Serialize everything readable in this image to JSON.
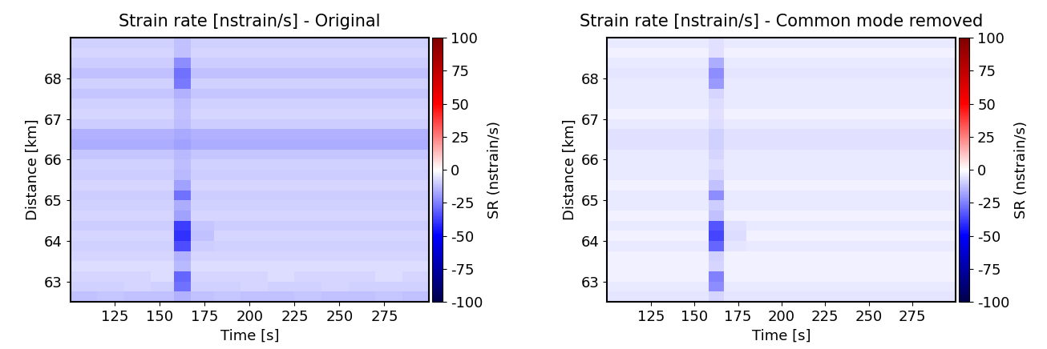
{
  "chart_data": [
    {
      "type": "heatmap",
      "title": "Strain rate [nstrain/s] - Original",
      "xlabel": "Time [s]",
      "ylabel": "Distance [km]",
      "color": "seismic",
      "x_edges": [
        100,
        115,
        130,
        145,
        158,
        167,
        180,
        195,
        210,
        225,
        240,
        255,
        270,
        285,
        300
      ],
      "y_edges": [
        62.5,
        62.75,
        63.0,
        63.25,
        63.5,
        63.75,
        64.0,
        64.25,
        64.5,
        64.75,
        65.0,
        65.25,
        65.5,
        65.75,
        66.0,
        66.25,
        66.5,
        66.75,
        67.0,
        67.25,
        67.5,
        67.75,
        68.0,
        68.25,
        68.5,
        68.75,
        69.0
      ],
      "cells": [
        [
          -12,
          -11,
          -12,
          -12,
          -15,
          -12,
          -11,
          -12,
          -12,
          -11,
          -12,
          -12,
          -11,
          -12
        ],
        [
          -9,
          -9,
          -8,
          -9,
          -28,
          -9,
          -9,
          -8,
          -9,
          -9,
          -8,
          -9,
          -9,
          -9
        ],
        [
          -8,
          -8,
          -8,
          -7,
          -30,
          -8,
          -8,
          -8,
          -7,
          -8,
          -8,
          -8,
          -7,
          -8
        ],
        [
          -7,
          -7,
          -7,
          -7,
          -14,
          -7,
          -7,
          -7,
          -7,
          -7,
          -7,
          -7,
          -7,
          -7
        ],
        [
          -8,
          -8,
          -8,
          -8,
          -15,
          -8,
          -8,
          -8,
          -8,
          -8,
          -8,
          -8,
          -8,
          -8
        ],
        [
          -9,
          -9,
          -9,
          -9,
          -35,
          -10,
          -9,
          -9,
          -9,
          -9,
          -9,
          -9,
          -9,
          -9
        ],
        [
          -8,
          -8,
          -8,
          -8,
          -40,
          -12,
          -8,
          -8,
          -8,
          -8,
          -8,
          -8,
          -8,
          -8
        ],
        [
          -10,
          -10,
          -10,
          -10,
          -38,
          -11,
          -10,
          -10,
          -10,
          -10,
          -10,
          -10,
          -10,
          -10
        ],
        [
          -8,
          -8,
          -8,
          -8,
          -18,
          -8,
          -8,
          -8,
          -8,
          -8,
          -8,
          -8,
          -8,
          -8
        ],
        [
          -9,
          -9,
          -9,
          -9,
          -16,
          -9,
          -9,
          -9,
          -9,
          -9,
          -9,
          -9,
          -9,
          -9
        ],
        [
          -10,
          -10,
          -10,
          -10,
          -28,
          -10,
          -10,
          -10,
          -10,
          -10,
          -10,
          -10,
          -10,
          -10
        ],
        [
          -8,
          -8,
          -8,
          -8,
          -18,
          -8,
          -8,
          -8,
          -8,
          -8,
          -8,
          -8,
          -8,
          -8
        ],
        [
          -10,
          -10,
          -10,
          -10,
          -14,
          -10,
          -10,
          -10,
          -10,
          -10,
          -10,
          -10,
          -10,
          -10
        ],
        [
          -9,
          -9,
          -9,
          -9,
          -13,
          -9,
          -9,
          -9,
          -9,
          -9,
          -9,
          -9,
          -9,
          -9
        ],
        [
          -11,
          -11,
          -11,
          -11,
          -14,
          -11,
          -11,
          -11,
          -11,
          -11,
          -11,
          -11,
          -11,
          -11
        ],
        [
          -16,
          -16,
          -16,
          -16,
          -18,
          -16,
          -16,
          -16,
          -16,
          -16,
          -16,
          -16,
          -16,
          -16
        ],
        [
          -15,
          -15,
          -15,
          -15,
          -17,
          -15,
          -15,
          -15,
          -15,
          -15,
          -15,
          -15,
          -15,
          -15
        ],
        [
          -10,
          -10,
          -10,
          -10,
          -13,
          -10,
          -10,
          -10,
          -10,
          -10,
          -10,
          -10,
          -10,
          -10
        ],
        [
          -8,
          -8,
          -8,
          -8,
          -12,
          -8,
          -8,
          -8,
          -8,
          -8,
          -8,
          -8,
          -8,
          -8
        ],
        [
          -9,
          -9,
          -9,
          -9,
          -13,
          -9,
          -9,
          -9,
          -9,
          -9,
          -9,
          -9,
          -9,
          -9
        ],
        [
          -11,
          -11,
          -11,
          -11,
          -15,
          -11,
          -11,
          -11,
          -11,
          -11,
          -11,
          -11,
          -11,
          -11
        ],
        [
          -9,
          -9,
          -9,
          -9,
          -26,
          -9,
          -9,
          -9,
          -9,
          -9,
          -9,
          -9,
          -9,
          -9
        ],
        [
          -12,
          -12,
          -12,
          -12,
          -28,
          -12,
          -12,
          -12,
          -12,
          -12,
          -12,
          -12,
          -12,
          -12
        ],
        [
          -10,
          -10,
          -10,
          -10,
          -22,
          -10,
          -10,
          -10,
          -10,
          -10,
          -10,
          -10,
          -10,
          -10
        ],
        [
          -8,
          -8,
          -8,
          -8,
          -12,
          -8,
          -8,
          -8,
          -8,
          -8,
          -8,
          -8,
          -8,
          -8
        ],
        [
          -9,
          -9,
          -9,
          -9,
          -12,
          -9,
          -9,
          -9,
          -9,
          -9,
          -9,
          -9,
          -9,
          -9
        ]
      ],
      "xlim": [
        100,
        300
      ],
      "ylim": [
        62.5,
        69.0
      ],
      "xticks": [
        125,
        150,
        175,
        200,
        225,
        250,
        275
      ],
      "yticks": [
        63,
        64,
        65,
        66,
        67,
        68
      ],
      "colorbar": {
        "label": "SR (nstrain/s)",
        "range": [
          -100,
          100
        ],
        "ticks": [
          -100,
          -75,
          -50,
          -25,
          0,
          25,
          50,
          75,
          100
        ]
      }
    },
    {
      "type": "heatmap",
      "title": "Strain rate [nstrain/s] - Common mode removed",
      "xlabel": "Time [s]",
      "ylabel": "Distance [km]",
      "color": "seismic",
      "x_edges": [
        100,
        115,
        130,
        145,
        158,
        167,
        180,
        195,
        210,
        225,
        240,
        255,
        270,
        285,
        300
      ],
      "y_edges": [
        62.5,
        62.75,
        63.0,
        63.25,
        63.5,
        63.75,
        64.0,
        64.25,
        64.5,
        64.75,
        65.0,
        65.25,
        65.5,
        65.75,
        66.0,
        66.25,
        66.5,
        66.75,
        67.0,
        67.25,
        67.5,
        67.75,
        68.0,
        68.25,
        68.5,
        68.75,
        69.0
      ],
      "cells": [
        [
          -5,
          -5,
          -5,
          -5,
          -8,
          -5,
          -5,
          -5,
          -5,
          -5,
          -5,
          -5,
          -5,
          -5
        ],
        [
          -4,
          -4,
          -4,
          -4,
          -22,
          -4,
          -4,
          -4,
          -4,
          -4,
          -4,
          -4,
          -4,
          -4
        ],
        [
          -3,
          -3,
          -3,
          -3,
          -25,
          -3,
          -3,
          -3,
          -3,
          -3,
          -3,
          -3,
          -3,
          -3
        ],
        [
          -3,
          -3,
          -3,
          -3,
          -8,
          -3,
          -3,
          -3,
          -3,
          -3,
          -3,
          -3,
          -3,
          -3
        ],
        [
          -3,
          -3,
          -3,
          -3,
          -9,
          -3,
          -3,
          -3,
          -3,
          -3,
          -3,
          -3,
          -3,
          -3
        ],
        [
          -4,
          -4,
          -4,
          -4,
          -30,
          -5,
          -4,
          -4,
          -4,
          -4,
          -4,
          -4,
          -4,
          -4
        ],
        [
          -3,
          -3,
          -3,
          -3,
          -36,
          -7,
          -3,
          -3,
          -3,
          -3,
          -3,
          -3,
          -3,
          -3
        ],
        [
          -4,
          -4,
          -4,
          -4,
          -33,
          -6,
          -4,
          -4,
          -4,
          -4,
          -4,
          -4,
          -4,
          -4
        ],
        [
          -3,
          -3,
          -3,
          -3,
          -12,
          -3,
          -3,
          -3,
          -3,
          -3,
          -3,
          -3,
          -3,
          -3
        ],
        [
          -4,
          -4,
          -4,
          -4,
          -10,
          -4,
          -4,
          -4,
          -4,
          -4,
          -4,
          -4,
          -4,
          -4
        ],
        [
          -4,
          -4,
          -4,
          -4,
          -22,
          -4,
          -4,
          -4,
          -4,
          -4,
          -4,
          -4,
          -4,
          -4
        ],
        [
          -3,
          -3,
          -3,
          -3,
          -12,
          -3,
          -3,
          -3,
          -3,
          -3,
          -3,
          -3,
          -3,
          -3
        ],
        [
          -4,
          -4,
          -4,
          -4,
          -8,
          -4,
          -4,
          -4,
          -4,
          -4,
          -4,
          -4,
          -4,
          -4
        ],
        [
          -4,
          -4,
          -4,
          -4,
          -7,
          -4,
          -4,
          -4,
          -4,
          -4,
          -4,
          -4,
          -4,
          -4
        ],
        [
          -4,
          -4,
          -4,
          -4,
          -8,
          -4,
          -4,
          -4,
          -4,
          -4,
          -4,
          -4,
          -4,
          -4
        ],
        [
          -6,
          -6,
          -6,
          -6,
          -9,
          -6,
          -6,
          -6,
          -6,
          -6,
          -6,
          -6,
          -6,
          -6
        ],
        [
          -6,
          -6,
          -6,
          -6,
          -9,
          -6,
          -6,
          -6,
          -6,
          -6,
          -6,
          -6,
          -6,
          -6
        ],
        [
          -4,
          -4,
          -4,
          -4,
          -7,
          -4,
          -4,
          -4,
          -4,
          -4,
          -4,
          -4,
          -4,
          -4
        ],
        [
          -3,
          -3,
          -3,
          -3,
          -6,
          -3,
          -3,
          -3,
          -3,
          -3,
          -3,
          -3,
          -3,
          -3
        ],
        [
          -4,
          -4,
          -4,
          -4,
          -7,
          -4,
          -4,
          -4,
          -4,
          -4,
          -4,
          -4,
          -4,
          -4
        ],
        [
          -4,
          -4,
          -4,
          -4,
          -8,
          -4,
          -4,
          -4,
          -4,
          -4,
          -4,
          -4,
          -4,
          -4
        ],
        [
          -4,
          -4,
          -4,
          -4,
          -20,
          -4,
          -4,
          -4,
          -4,
          -4,
          -4,
          -4,
          -4,
          -4
        ],
        [
          -5,
          -5,
          -5,
          -5,
          -22,
          -5,
          -5,
          -5,
          -5,
          -5,
          -5,
          -5,
          -5,
          -5
        ],
        [
          -4,
          -4,
          -4,
          -4,
          -16,
          -4,
          -4,
          -4,
          -4,
          -4,
          -4,
          -4,
          -4,
          -4
        ],
        [
          -3,
          -3,
          -3,
          -3,
          -6,
          -3,
          -3,
          -3,
          -3,
          -3,
          -3,
          -3,
          -3,
          -3
        ],
        [
          -4,
          -4,
          -4,
          -4,
          -6,
          -4,
          -4,
          -4,
          -4,
          -4,
          -4,
          -4,
          -4,
          -4
        ]
      ],
      "xlim": [
        100,
        300
      ],
      "ylim": [
        62.5,
        69.0
      ],
      "xticks": [
        125,
        150,
        175,
        200,
        225,
        250,
        275
      ],
      "yticks": [
        63,
        64,
        65,
        66,
        67,
        68
      ],
      "colorbar": {
        "label": "SR (nstrain/s)",
        "range": [
          -100,
          100
        ],
        "ticks": [
          -100,
          -75,
          -50,
          -25,
          0,
          25,
          50,
          75,
          100
        ]
      }
    }
  ]
}
